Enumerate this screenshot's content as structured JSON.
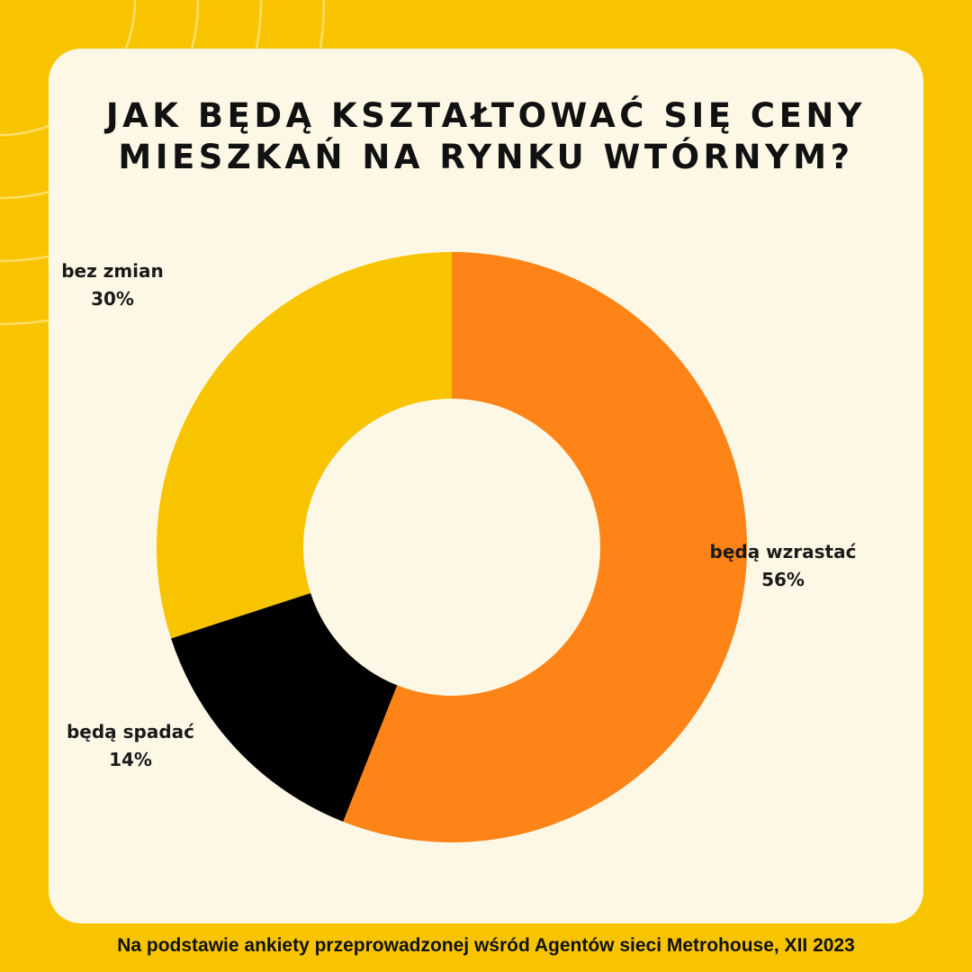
{
  "title": "JAK BĘDĄ KSZTAŁTOWAĆ SIĘ CENY MIESZKAŃ NA RYNKU WTÓRNYM?",
  "footer": "Na podstawie ankiety przeprowadzonej wśród Agentów sieci Metrohouse, XII 2023",
  "colors": {
    "background": "#F8C400",
    "card": "#FDF8E6",
    "text": "#111111"
  },
  "chart_data": {
    "type": "pie",
    "donut": true,
    "slices": [
      {
        "label": "będą wzrastać",
        "value": 56,
        "display": "56%",
        "color": "#FF8418"
      },
      {
        "label": "będą spadać",
        "value": 14,
        "display": "14%",
        "color": "#000000"
      },
      {
        "label": "bez zmian",
        "value": 30,
        "display": "30%",
        "color": "#F8C400"
      }
    ]
  }
}
